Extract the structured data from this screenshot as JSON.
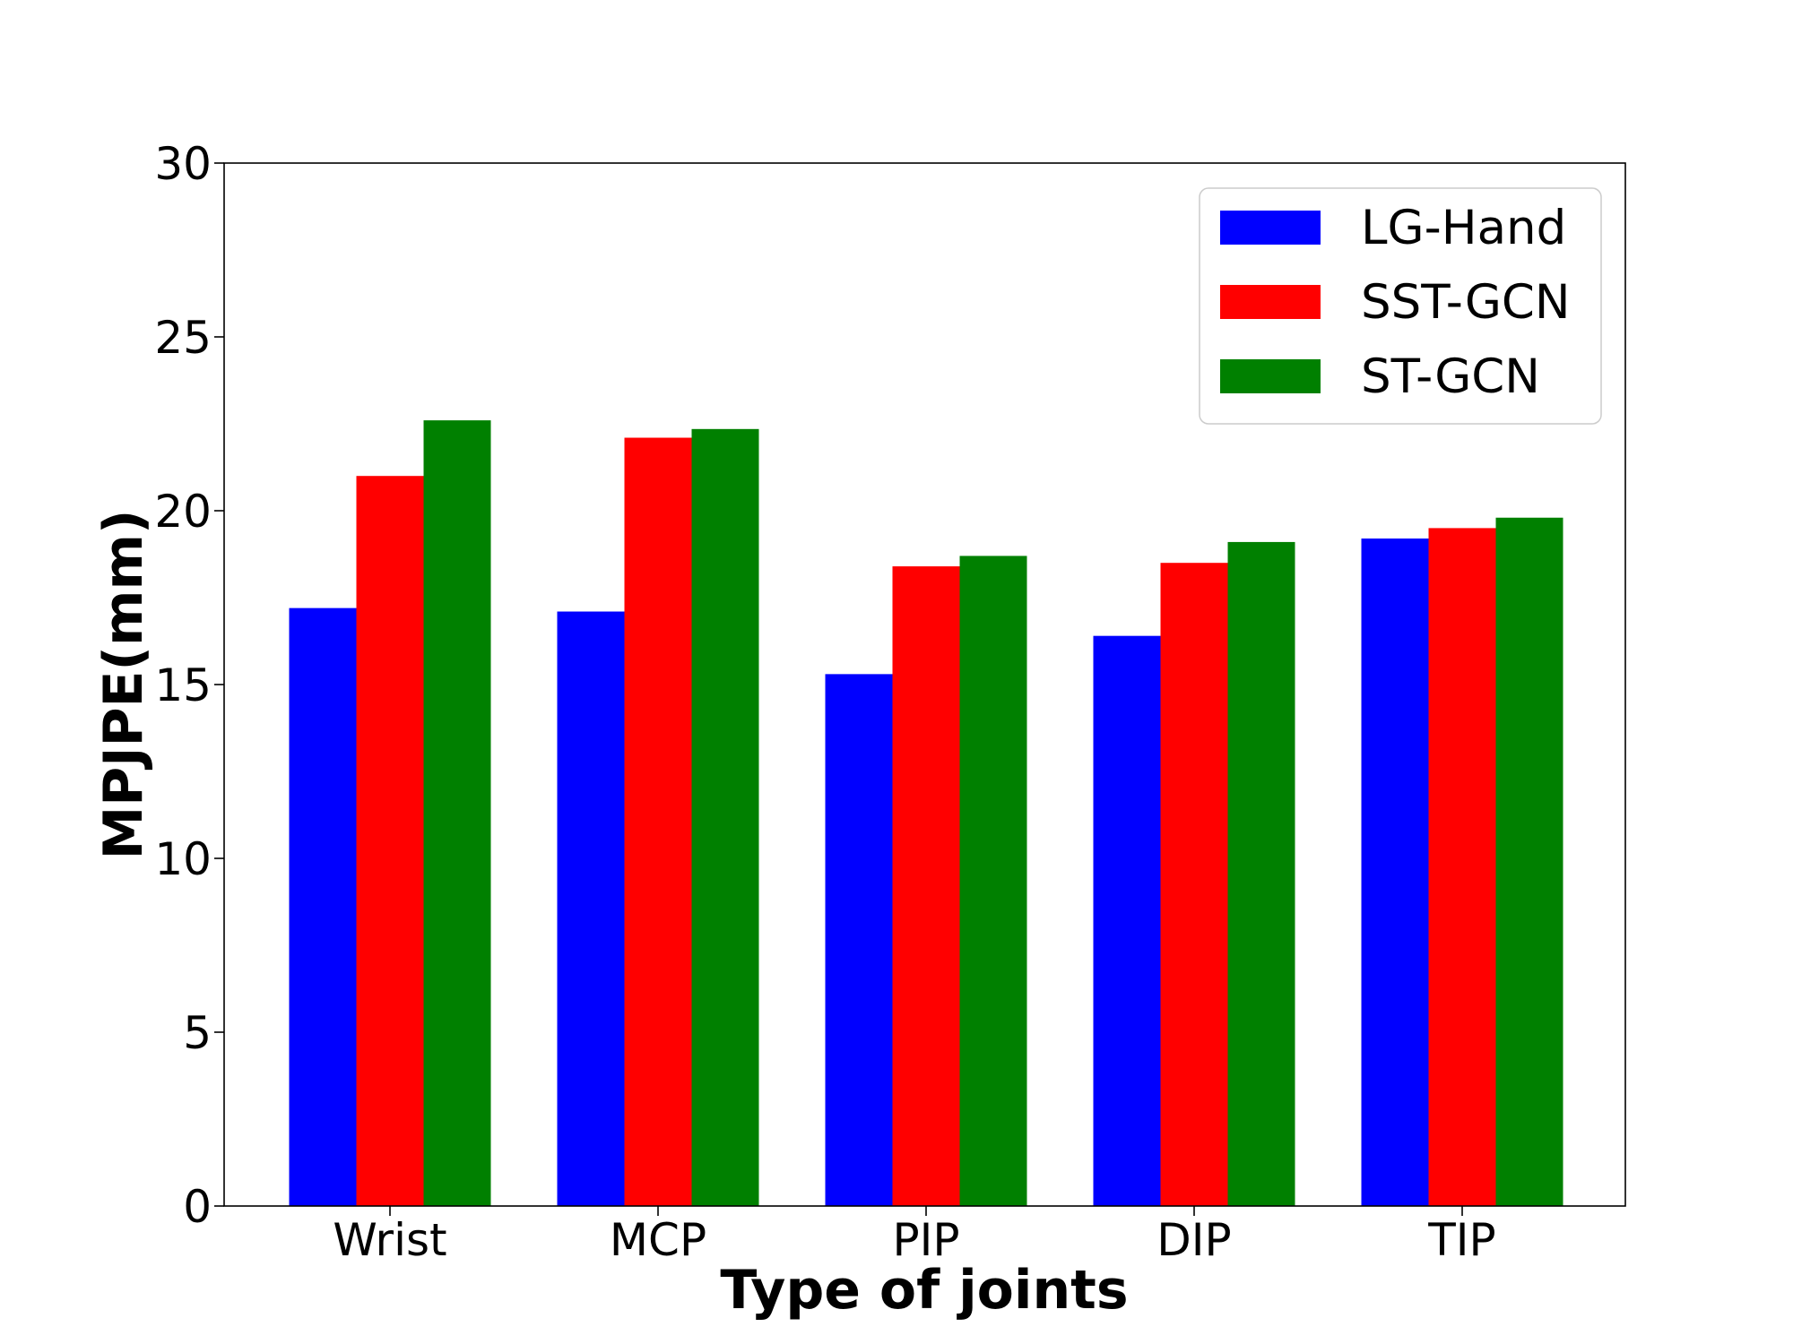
{
  "chart_data": {
    "type": "bar",
    "title": "",
    "xlabel": "Type of joints",
    "ylabel": "MPJPE(mm)",
    "ylim": [
      0,
      30
    ],
    "yticks": [
      0,
      5,
      10,
      15,
      20,
      25,
      30
    ],
    "categories": [
      "Wrist",
      "MCP",
      "PIP",
      "DIP",
      "TIP"
    ],
    "series": [
      {
        "name": "LG-Hand",
        "color": "#0000ff",
        "values": [
          17.2,
          17.1,
          15.3,
          16.4,
          19.2
        ]
      },
      {
        "name": "SST-GCN",
        "color": "#ff0000",
        "values": [
          21.0,
          22.1,
          18.4,
          18.5,
          19.5
        ]
      },
      {
        "name": "ST-GCN",
        "color": "#008000",
        "values": [
          22.6,
          22.35,
          18.7,
          19.1,
          19.8
        ]
      }
    ],
    "legend_position": "top-right",
    "grid": false
  }
}
